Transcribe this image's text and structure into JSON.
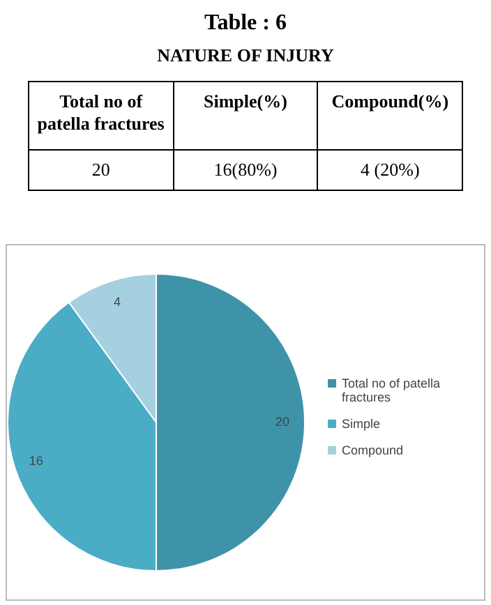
{
  "chart_data": [
    {
      "type": "other",
      "title": "Table : 6",
      "subtitle": "NATURE OF INJURY",
      "annotations": [
        "Total no of patella fractures",
        "Simple(%)",
        "Compound(%)",
        "20",
        "16(80%)",
        "4 (20%)"
      ]
    },
    {
      "type": "pie",
      "categories": [
        "Total no of patella fractures",
        "Simple",
        "Compound"
      ],
      "values": [
        20,
        16,
        4
      ],
      "colors": [
        "#3f93a8",
        "#4bacc6",
        "#a5d0df"
      ],
      "data_labels": true,
      "legend": "right"
    }
  ]
}
